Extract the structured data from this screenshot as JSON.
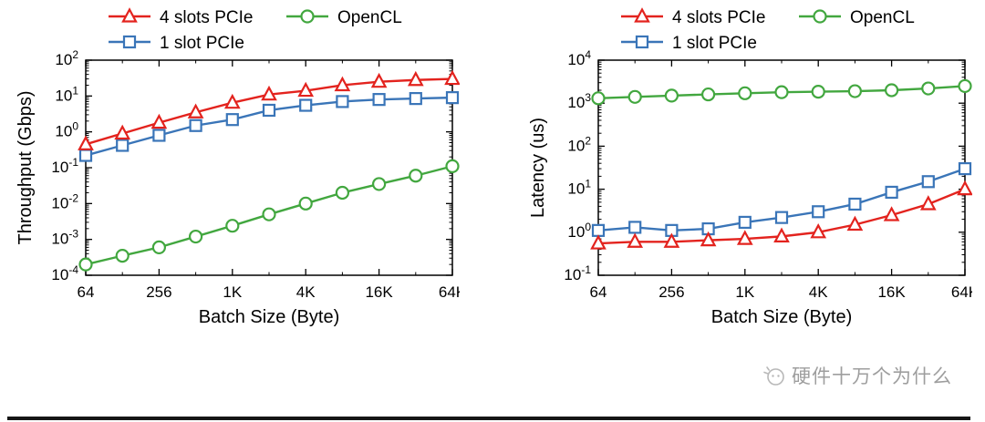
{
  "page": {
    "background": "#ffffff"
  },
  "watermark": {
    "text": "硬件十万个为什么",
    "color": "#9e9e9e"
  },
  "legend": {
    "position": "top",
    "items": [
      "4 slots PCIe",
      "1 slot PCIe",
      "OpenCL"
    ]
  },
  "chart_data": [
    {
      "type": "line",
      "title": "",
      "xlabel": "Batch Size (Byte)",
      "ylabel": "Throughput (Gbps)",
      "x_scale": "log",
      "y_scale": "log",
      "x": [
        64,
        128,
        256,
        512,
        1024,
        2048,
        4096,
        8192,
        16384,
        32768,
        65536
      ],
      "xtick_positions": [
        64,
        256,
        1024,
        4096,
        16384,
        65536
      ],
      "xtick_labels": [
        "64",
        "256",
        "1K",
        "4K",
        "16K",
        "64K"
      ],
      "ylog_range": [
        -4,
        2
      ],
      "grid": false,
      "series": [
        {
          "name": "4 slots PCIe",
          "color": "#e3231e",
          "marker": "triangle",
          "values": [
            0.45,
            0.9,
            1.8,
            3.5,
            6.5,
            11,
            14,
            20,
            25,
            28,
            30
          ]
        },
        {
          "name": "1 slot PCIe",
          "color": "#3a75b8",
          "marker": "square",
          "values": [
            0.22,
            0.42,
            0.8,
            1.5,
            2.2,
            4,
            5.5,
            7,
            8,
            8.5,
            9
          ]
        },
        {
          "name": "OpenCL",
          "color": "#42a73f",
          "marker": "circle",
          "values": [
            0.0002,
            0.00035,
            0.0006,
            0.0012,
            0.0024,
            0.005,
            0.01,
            0.02,
            0.035,
            0.06,
            0.11
          ]
        }
      ]
    },
    {
      "type": "line",
      "title": "",
      "xlabel": "Batch Size (Byte)",
      "ylabel": "Latency (us)",
      "x_scale": "log",
      "y_scale": "log",
      "x": [
        64,
        128,
        256,
        512,
        1024,
        2048,
        4096,
        8192,
        16384,
        32768,
        65536
      ],
      "xtick_positions": [
        64,
        256,
        1024,
        4096,
        16384,
        65536
      ],
      "xtick_labels": [
        "64",
        "256",
        "1K",
        "4K",
        "16K",
        "64K"
      ],
      "ylog_range": [
        -1,
        4
      ],
      "grid": false,
      "series": [
        {
          "name": "4 slots PCIe",
          "color": "#e3231e",
          "marker": "triangle",
          "values": [
            0.55,
            0.6,
            0.6,
            0.65,
            0.7,
            0.8,
            1.0,
            1.5,
            2.5,
            4.5,
            10
          ]
        },
        {
          "name": "1 slot PCIe",
          "color": "#3a75b8",
          "marker": "square",
          "values": [
            1.1,
            1.3,
            1.1,
            1.2,
            1.7,
            2.2,
            3.0,
            4.5,
            8.5,
            15,
            30
          ]
        },
        {
          "name": "OpenCL",
          "color": "#42a73f",
          "marker": "circle",
          "values": [
            1300,
            1400,
            1500,
            1600,
            1700,
            1800,
            1850,
            1900,
            2000,
            2200,
            2500
          ]
        }
      ]
    }
  ]
}
